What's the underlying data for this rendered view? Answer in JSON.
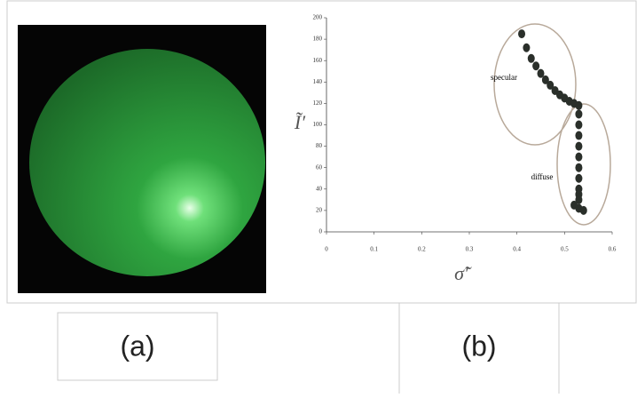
{
  "chart_data": {
    "type": "scatter",
    "x_label": "σ̃′",
    "y_label": "Ĩ′",
    "annotations": [
      "specular",
      "diffuse"
    ],
    "x": [
      0.41,
      0.42,
      0.43,
      0.44,
      0.45,
      0.46,
      0.47,
      0.48,
      0.49,
      0.5,
      0.51,
      0.52,
      0.53,
      0.53,
      0.53,
      0.53,
      0.53,
      0.53,
      0.53,
      0.53,
      0.53,
      0.53,
      0.53,
      0.52,
      0.53,
      0.54
    ],
    "values": [
      185,
      172,
      162,
      155,
      148,
      142,
      137,
      132,
      128,
      125,
      122,
      120,
      118,
      110,
      100,
      90,
      80,
      70,
      60,
      50,
      40,
      35,
      30,
      25,
      22,
      20
    ],
    "color": "#2a2f2a",
    "xlim": [
      0,
      0.6
    ],
    "ylim": [
      0,
      200
    ],
    "xticks": [
      0,
      0.1,
      0.2,
      0.3,
      0.4,
      0.5,
      0.6
    ],
    "yticks": [
      0,
      20,
      40,
      60,
      80,
      100,
      120,
      140,
      160,
      180,
      200
    ]
  },
  "panel_labels": [
    "(a)",
    "(b)"
  ]
}
